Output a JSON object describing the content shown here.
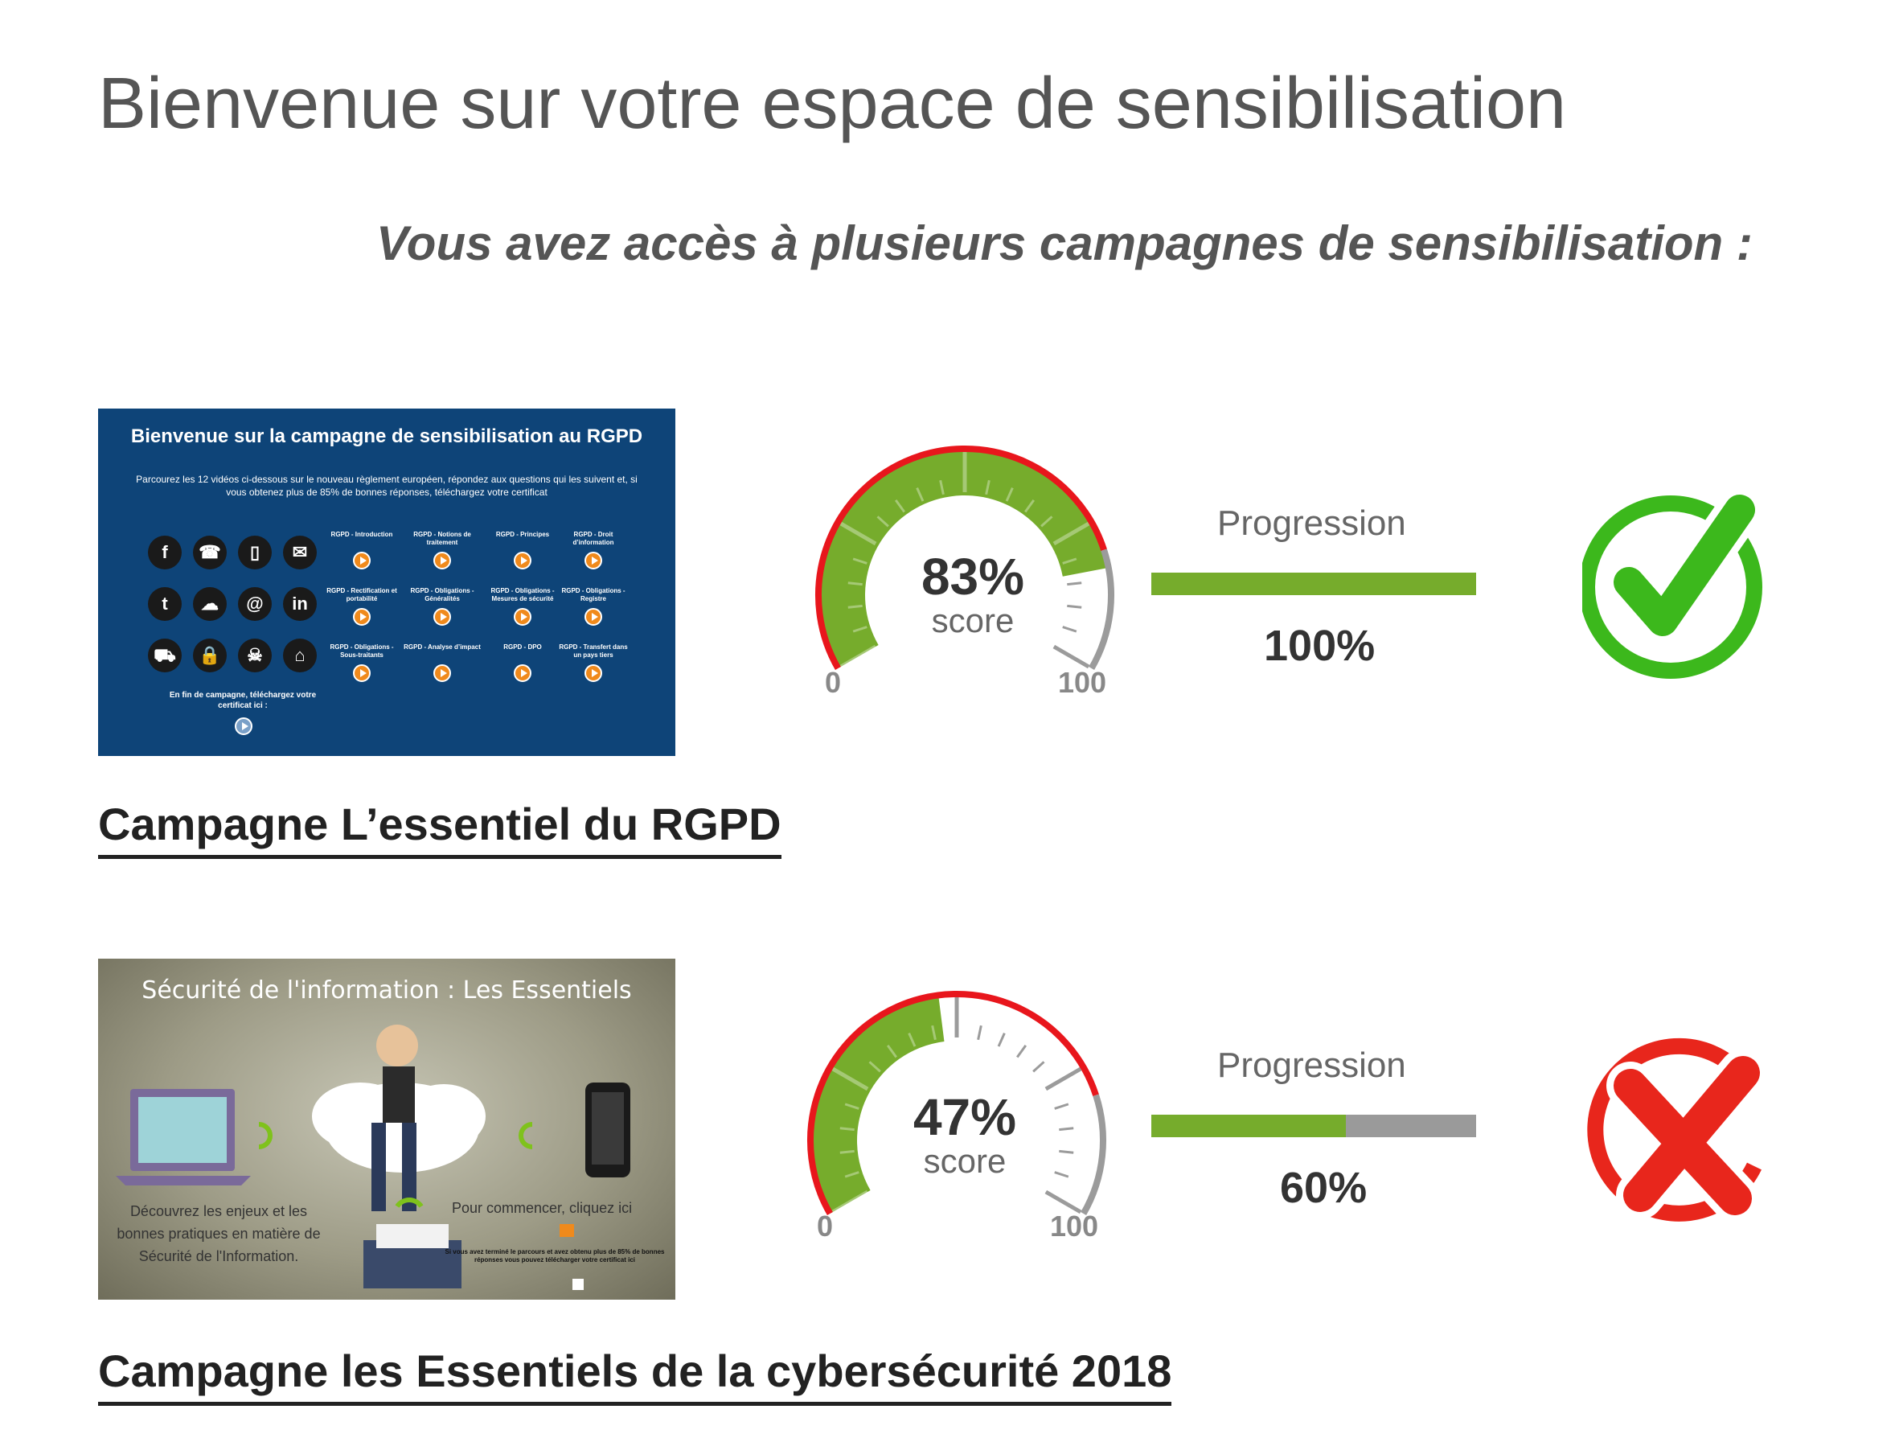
{
  "page": {
    "title": "Bienvenue sur votre espace de sensibilisation",
    "subtitle": "Vous avez accès à plusieurs campagnes de sensibilisation :"
  },
  "campaigns": [
    {
      "name": "Campagne L’essentiel du RGPD",
      "score": 83,
      "score_text": "83%",
      "score_label": "score",
      "scale_min": "0",
      "scale_max": "100",
      "progress_label": "Progression",
      "progress": 100,
      "progress_text": "100%",
      "status_icon": "check-icon",
      "status_color": "#3cb81c",
      "thumbnail": {
        "title": "Bienvenue sur la campagne de sensibilisation au RGPD",
        "description": "Parcourez les 12 vidéos ci-dessous sur le nouveau règlement européen, répondez aux questions qui les suivent et, si vous obtenez plus de 85% de bonnes réponses, téléchargez votre certificat",
        "icons": [
          "f",
          "☎",
          "▯",
          "✉",
          "t",
          "☁",
          "@",
          "in",
          "⛟",
          "🔒",
          "☠",
          "⌂"
        ],
        "videos": [
          "RGPD - Introduction",
          "RGPD - Notions de traitement",
          "RGPD - Principes",
          "RGPD - Droit d’information",
          "RGPD - Rectification et portabilité",
          "RGPD - Obligations - Généralités",
          "RGPD - Obligations - Mesures de sécurité",
          "RGPD - Obligations - Registre",
          "RGPD - Obligations - Sous-traitants",
          "RGPD - Analyse d’impact",
          "RGPD - DPO",
          "RGPD - Transfert dans un pays tiers"
        ],
        "end_text": "En fin de campagne, téléchargez votre certificat ici :"
      }
    },
    {
      "name": "Campagne les Essentiels de la cybersécurité 2018",
      "score": 47,
      "score_text": "47%",
      "score_label": "score",
      "scale_min": "0",
      "scale_max": "100",
      "progress_label": "Progression",
      "progress": 60,
      "progress_text": "60%",
      "status_icon": "cross-icon",
      "status_color": "#e8261c",
      "thumbnail": {
        "title": "Sécurité de l'information : Les Essentiels",
        "left_text": "Découvrez les enjeux et les bonnes pratiques en matière de Sécurité de l'Information.",
        "right_text": "Pour commencer, cliquez ici",
        "small_text": "Si vous avez terminé le parcours et avez obtenu plus de 85% de bonnes réponses vous pouvez télécharger votre certificat ici"
      }
    }
  ],
  "colors": {
    "gauge_fill": "#76ac2c",
    "gauge_arc": "#e8161c",
    "gauge_ticks": "#9b9b9b",
    "progress_fill": "#76ac2c",
    "progress_track": "#9a9a9a"
  }
}
